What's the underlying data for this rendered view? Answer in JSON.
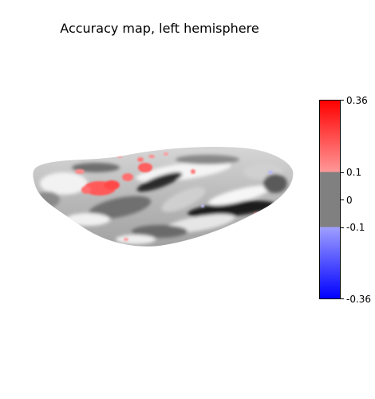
{
  "figure": {
    "title": "Accuracy map, left hemisphere"
  },
  "colorbar": {
    "colors": {
      "max": "#ff0000",
      "pos_threshold": "#ff9898",
      "zero": "#808080",
      "neg_threshold": "#a0a0ff",
      "min": "#0000ff"
    },
    "ticks": [
      {
        "value": 0.36,
        "label": "0.36"
      },
      {
        "value": 0.1,
        "label": "0.1"
      },
      {
        "value": 0,
        "label": "0"
      },
      {
        "value": -0.1,
        "label": "-0.1"
      },
      {
        "value": -0.36,
        "label": "-0.36"
      }
    ],
    "range": [
      -0.36,
      0.36
    ]
  },
  "surface": {
    "hemisphere_colors": {
      "base_light": "#ececec",
      "base_dark": "#1a1a1a",
      "activation": "#ff6464",
      "activation_faint": "#ff9a9a"
    }
  }
}
